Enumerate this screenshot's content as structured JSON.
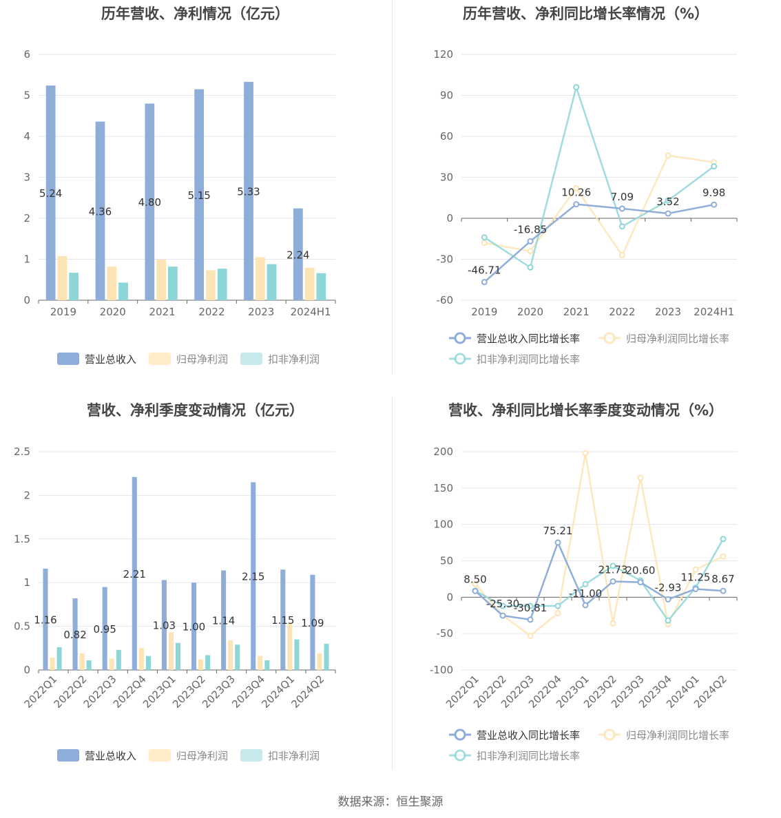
{
  "footer": {
    "source": "数据来源：恒生聚源"
  },
  "charts": [
    {
      "title": "历年营收、净利情况（亿元）",
      "legend": [
        "营业总收入",
        "归母净利润",
        "扣非净利润"
      ]
    },
    {
      "title": "历年营收、净利同比增长率情况（%）",
      "legend": [
        "营业总收入同比增长率",
        "归母净利润同比增长率",
        "扣非净利润同比增长率"
      ]
    },
    {
      "title": "营收、净利季度变动情况（亿元）",
      "legend": [
        "营业总收入",
        "归母净利润",
        "扣非净利润"
      ]
    },
    {
      "title": "营收、净利同比增长率季度变动情况（%）",
      "legend": [
        "营业总收入同比增长率",
        "归母净利润同比增长率",
        "扣非净利润同比增长率"
      ]
    }
  ],
  "colors": {
    "revenue": "#8eadd9",
    "net_profit": "#fde4b5",
    "deducted": "#8dd6d8",
    "grid": "#e3e6f0",
    "axis": "#666666",
    "label": "#333333"
  },
  "chart_data": [
    {
      "type": "bar",
      "title": "历年营收、净利情况（亿元）",
      "categories": [
        "2019",
        "2020",
        "2021",
        "2022",
        "2023",
        "2024H1"
      ],
      "ylim": [
        0,
        6
      ],
      "yticks": [
        0,
        1,
        2,
        3,
        4,
        5,
        6
      ],
      "series": [
        {
          "name": "营业总收入",
          "values": [
            5.24,
            4.36,
            4.8,
            5.15,
            5.33,
            2.24
          ],
          "labels": [
            "5.24",
            "4.36",
            "4.80",
            "5.15",
            "5.33",
            "2.24"
          ]
        },
        {
          "name": "归母净利润",
          "values": [
            1.08,
            0.82,
            0.99,
            0.73,
            1.05,
            0.79
          ]
        },
        {
          "name": "扣非净利润",
          "values": [
            0.67,
            0.43,
            0.82,
            0.77,
            0.88,
            0.66
          ]
        }
      ],
      "legend_position": "bottom",
      "grid": true
    },
    {
      "type": "line",
      "title": "历年营收、净利同比增长率情况（%）",
      "categories": [
        "2019",
        "2020",
        "2021",
        "2022",
        "2023",
        "2024H1"
      ],
      "ylim": [
        -60,
        120
      ],
      "yticks": [
        -60,
        -30,
        0,
        30,
        60,
        90,
        120
      ],
      "series": [
        {
          "name": "营业总收入同比增长率",
          "values": [
            -46.71,
            -16.85,
            10.26,
            7.09,
            3.52,
            9.98
          ],
          "labels": [
            "-46.71",
            "-16.85",
            "10.26",
            "7.09",
            "3.52",
            "9.98"
          ]
        },
        {
          "name": "归母净利润同比增长率",
          "values": [
            -18,
            -24,
            22,
            -27,
            46,
            41
          ]
        },
        {
          "name": "扣非净利润同比增长率",
          "values": [
            -14,
            -36,
            96,
            -6,
            13,
            38
          ]
        }
      ],
      "legend_position": "bottom",
      "grid": true
    },
    {
      "type": "bar",
      "title": "营收、净利季度变动情况（亿元）",
      "categories": [
        "2022Q1",
        "2022Q2",
        "2022Q3",
        "2022Q4",
        "2023Q1",
        "2023Q2",
        "2023Q3",
        "2023Q4",
        "2024Q1",
        "2024Q2"
      ],
      "ylim": [
        0,
        2.5
      ],
      "yticks": [
        0,
        0.5,
        1,
        1.5,
        2,
        2.5
      ],
      "series": [
        {
          "name": "营业总收入",
          "values": [
            1.16,
            0.82,
            0.95,
            2.21,
            1.03,
            1.0,
            1.14,
            2.15,
            1.15,
            1.09
          ],
          "labels": [
            "1.16",
            "0.82",
            "0.95",
            "2.21",
            "1.03",
            "1.00",
            "1.14",
            "2.15",
            "1.15",
            "1.09"
          ]
        },
        {
          "name": "归母净利润",
          "values": [
            0.14,
            0.19,
            0.13,
            0.25,
            0.43,
            0.12,
            0.34,
            0.16,
            0.53,
            0.19
          ]
        },
        {
          "name": "扣非净利润",
          "values": [
            0.26,
            0.11,
            0.23,
            0.16,
            0.31,
            0.17,
            0.29,
            0.11,
            0.35,
            0.3
          ]
        }
      ],
      "legend_position": "bottom",
      "grid": true
    },
    {
      "type": "line",
      "title": "营收、净利同比增长率季度变动情况（%）",
      "categories": [
        "2022Q1",
        "2022Q2",
        "2022Q3",
        "2022Q4",
        "2023Q1",
        "2023Q2",
        "2023Q3",
        "2023Q4",
        "2024Q1",
        "2024Q2"
      ],
      "ylim": [
        -100,
        200
      ],
      "yticks": [
        -100,
        -50,
        0,
        50,
        100,
        150,
        200
      ],
      "series": [
        {
          "name": "营业总收入同比增长率",
          "values": [
            8.5,
            -25.3,
            -30.81,
            75.21,
            -11.0,
            21.73,
            20.6,
            -2.93,
            11.25,
            8.67
          ],
          "labels": [
            "8.50",
            "-25.30",
            "-30.81",
            "75.21",
            "-11.00",
            "21.73",
            "20.60",
            "-2.93",
            "11.25",
            "8.67"
          ]
        },
        {
          "name": "归母净利润同比增长率",
          "values": [
            18,
            -25,
            -53,
            -22,
            198,
            -36,
            164,
            -37,
            38,
            56
          ]
        },
        {
          "name": "扣非净利润同比增长率",
          "values": [
            9,
            -12,
            -12,
            -12,
            18,
            43,
            23,
            -32,
            13,
            80
          ]
        }
      ],
      "legend_position": "bottom",
      "grid": true
    }
  ]
}
